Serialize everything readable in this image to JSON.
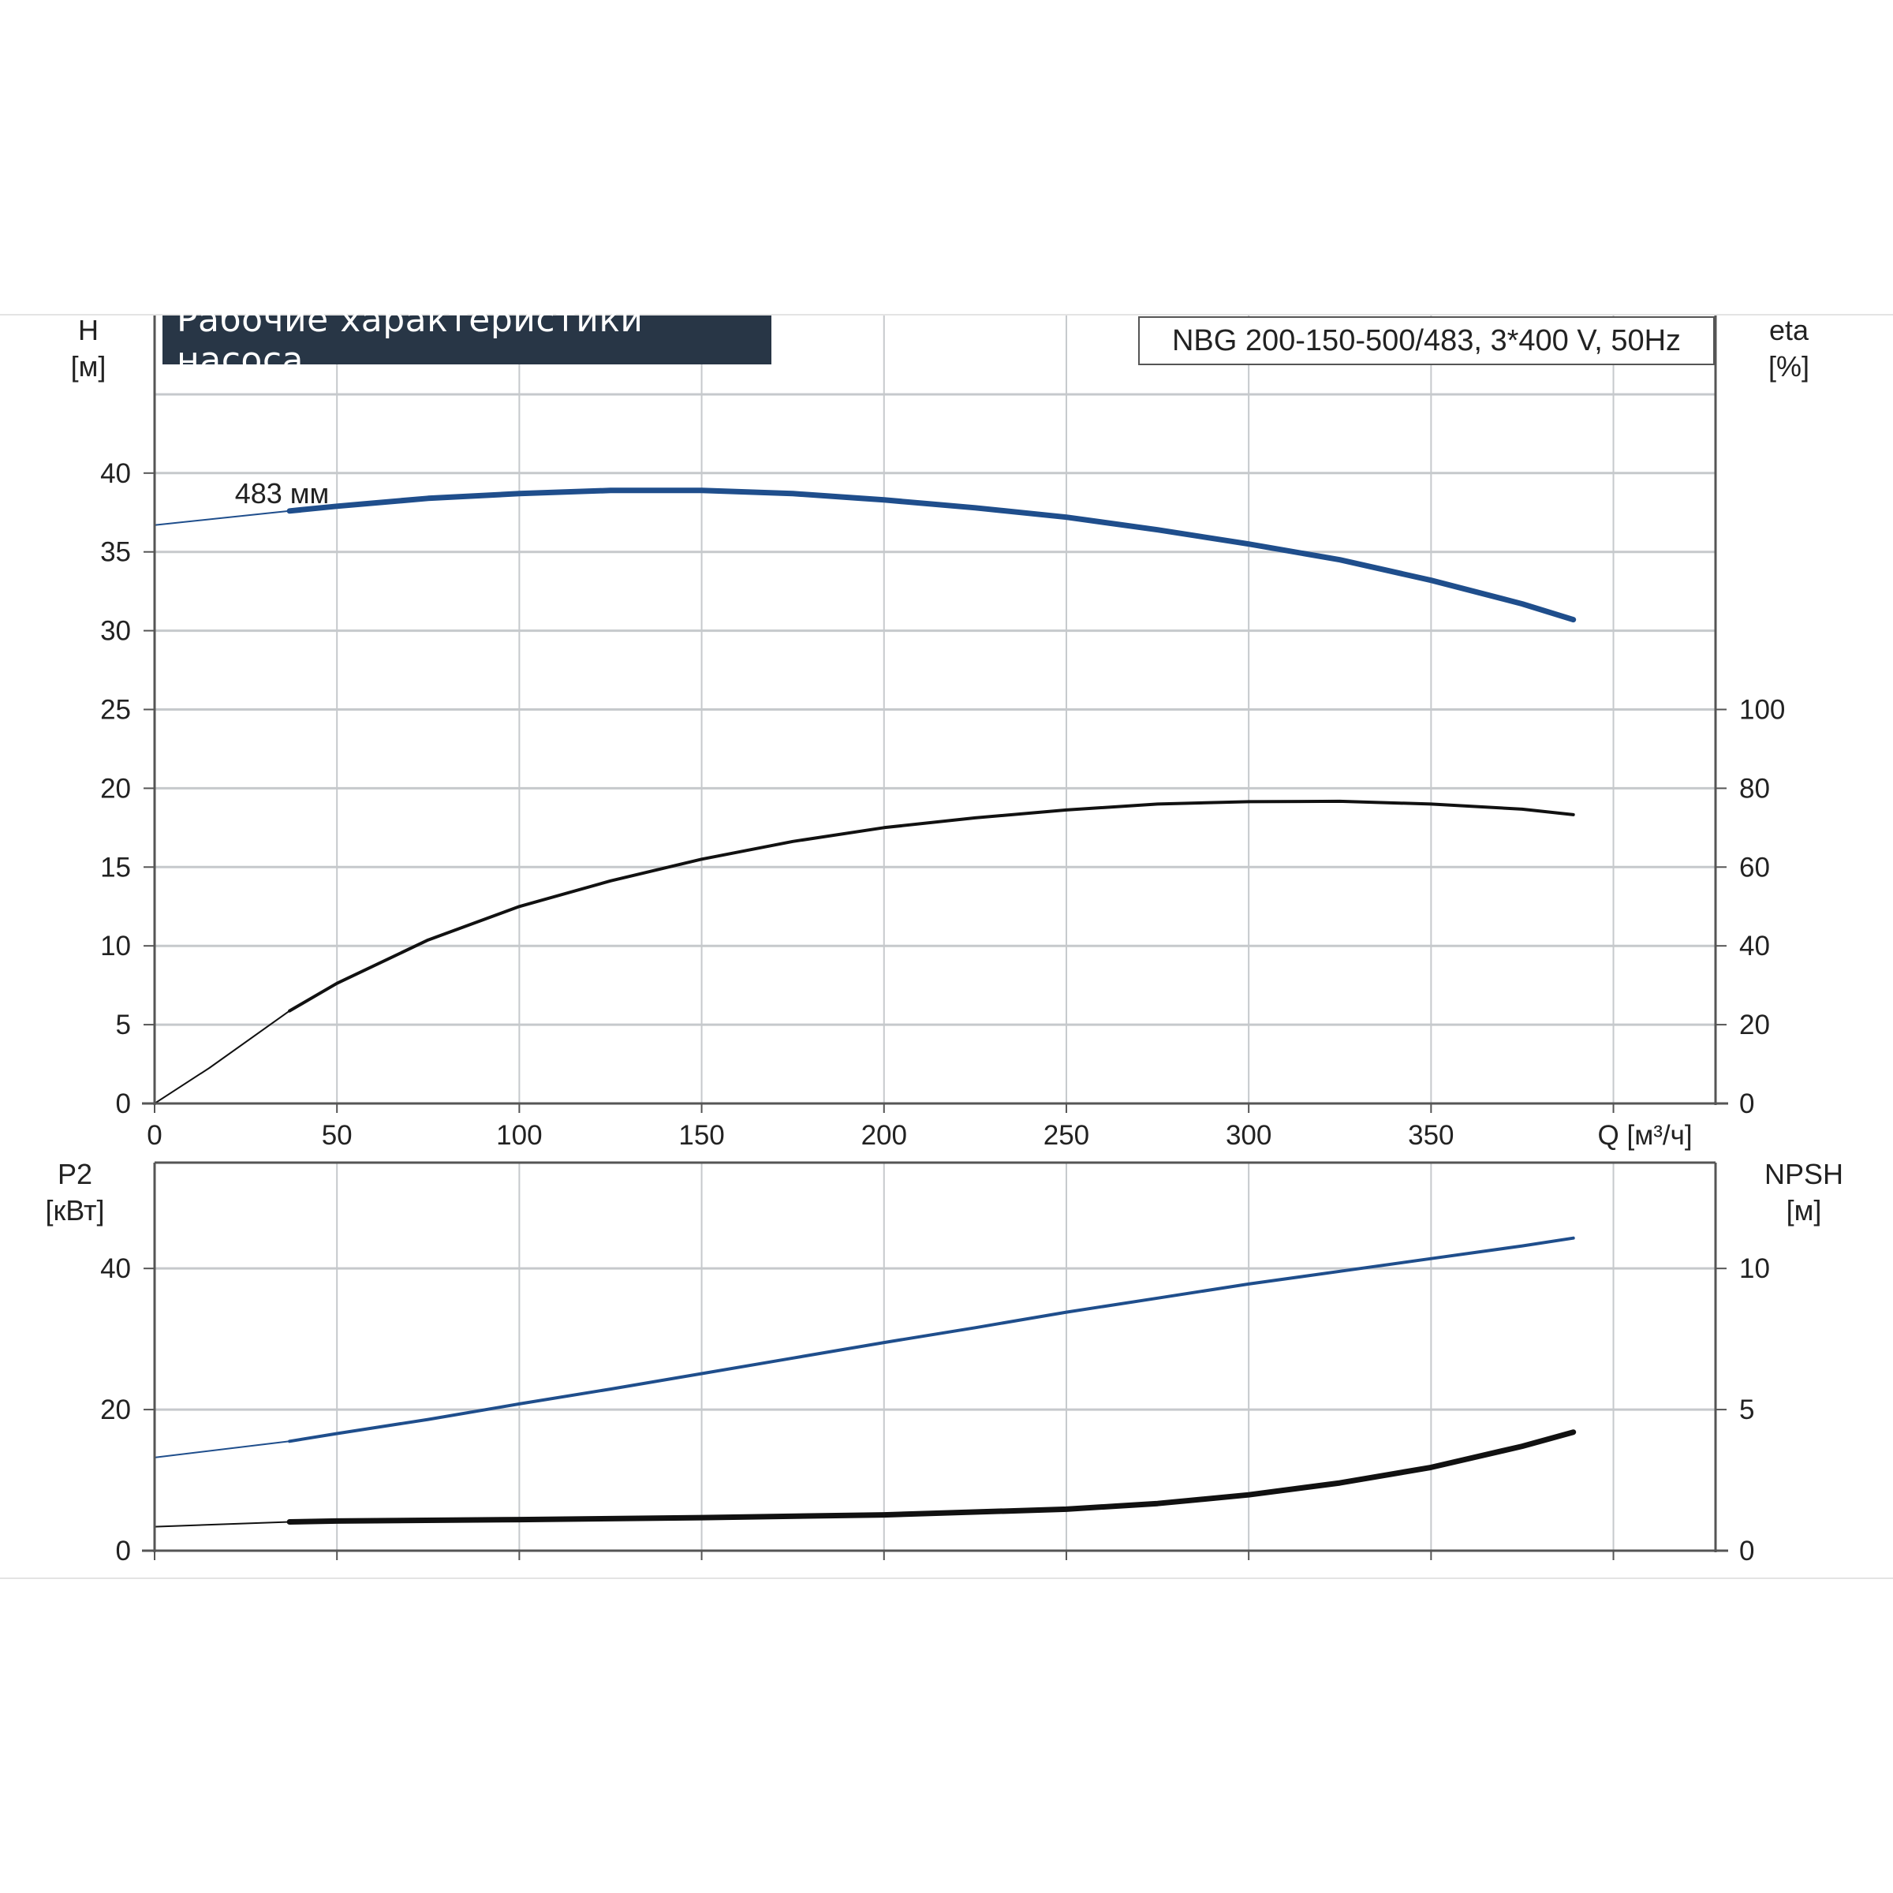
{
  "chart_data": [
    {
      "type": "line",
      "title": "Рабочие характеристики насоса",
      "subtitle": "NBG 200-150-500/483, 3*400 V, 50Hz",
      "xlabel": "Q [м³/ч]",
      "xlim": [
        0,
        428
      ],
      "x_ticks": [
        "0",
        "50",
        "100",
        "150",
        "200",
        "250",
        "300",
        "350"
      ],
      "left_axis": {
        "label_line1": "H",
        "label_line2": "[м]",
        "ylim": [
          0,
          50
        ],
        "ticks": [
          "0",
          "5",
          "10",
          "15",
          "20",
          "25",
          "30",
          "35",
          "40"
        ]
      },
      "right_axis": {
        "label_line1": "eta",
        "label_line2": "[%]",
        "ylim": [
          0,
          200
        ],
        "ticks": [
          "0",
          "20",
          "40",
          "60",
          "80",
          "100"
        ]
      },
      "annotation": "483 мм",
      "grid": true,
      "series": [
        {
          "axis": "left",
          "color": "#1f4e8c",
          "points": [
            [
              0,
              36.7
            ],
            [
              37,
              37.6
            ],
            [
              50,
              37.9
            ],
            [
              75,
              38.4
            ],
            [
              100,
              38.7
            ],
            [
              125,
              38.9
            ],
            [
              150,
              38.9
            ],
            [
              175,
              38.7
            ],
            [
              200,
              38.3
            ],
            [
              225,
              37.8
            ],
            [
              250,
              37.2
            ],
            [
              275,
              36.4
            ],
            [
              300,
              35.5
            ],
            [
              325,
              34.5
            ],
            [
              350,
              33.2
            ],
            [
              375,
              31.7
            ],
            [
              389,
              30.7
            ]
          ]
        },
        {
          "axis": "right",
          "color": "#111111",
          "points": [
            [
              0,
              0
            ],
            [
              15,
              9
            ],
            [
              37,
              23.5
            ],
            [
              50,
              30.5
            ],
            [
              75,
              41.5
            ],
            [
              100,
              50
            ],
            [
              125,
              56.5
            ],
            [
              150,
              62
            ],
            [
              175,
              66.5
            ],
            [
              200,
              70
            ],
            [
              225,
              72.5
            ],
            [
              250,
              74.5
            ],
            [
              275,
              76
            ],
            [
              300,
              76.6
            ],
            [
              325,
              76.7
            ],
            [
              350,
              76
            ],
            [
              375,
              74.7
            ],
            [
              389,
              73.3
            ]
          ]
        }
      ]
    },
    {
      "type": "line",
      "xlim": [
        0,
        428
      ],
      "left_axis": {
        "label_line1": "P2",
        "label_line2": "[кВт]",
        "ylim": [
          0,
          55
        ],
        "ticks": [
          "0",
          "20",
          "40"
        ]
      },
      "right_axis": {
        "label_line1": "NPSH",
        "label_line2": "[м]",
        "ylim": [
          0,
          13.75
        ],
        "ticks": [
          "0",
          "5",
          "10"
        ]
      },
      "grid": true,
      "series": [
        {
          "axis": "left",
          "color": "#1f4e8c",
          "points": [
            [
              0,
              13.2
            ],
            [
              37,
              15.5
            ],
            [
              50,
              16.6
            ],
            [
              75,
              18.6
            ],
            [
              100,
              20.8
            ],
            [
              125,
              22.9
            ],
            [
              150,
              25.1
            ],
            [
              175,
              27.3
            ],
            [
              200,
              29.5
            ],
            [
              225,
              31.6
            ],
            [
              250,
              33.8
            ],
            [
              275,
              35.8
            ],
            [
              300,
              37.8
            ],
            [
              325,
              39.6
            ],
            [
              350,
              41.4
            ],
            [
              375,
              43.2
            ],
            [
              389,
              44.3
            ]
          ]
        },
        {
          "axis": "right",
          "color": "#111111",
          "points": [
            [
              0,
              0.85
            ],
            [
              37,
              1.02
            ],
            [
              50,
              1.05
            ],
            [
              100,
              1.1
            ],
            [
              150,
              1.17
            ],
            [
              200,
              1.27
            ],
            [
              250,
              1.47
            ],
            [
              275,
              1.67
            ],
            [
              300,
              1.98
            ],
            [
              325,
              2.4
            ],
            [
              350,
              2.95
            ],
            [
              375,
              3.7
            ],
            [
              389,
              4.2
            ]
          ]
        }
      ]
    }
  ]
}
